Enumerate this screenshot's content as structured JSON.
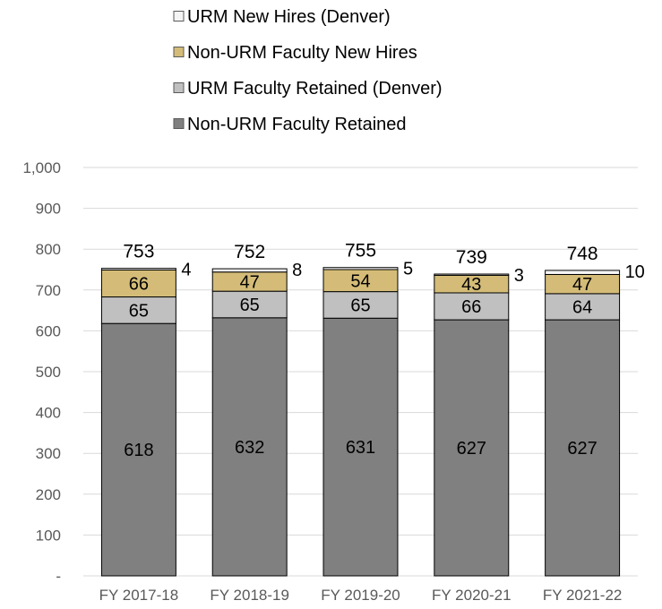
{
  "chart_data": {
    "type": "bar",
    "stacked": true,
    "categories": [
      "FY 2017-18",
      "FY 2018-19",
      "FY 2019-20",
      "FY 2020-21",
      "FY 2021-22"
    ],
    "series": [
      {
        "name": "Non-URM Faculty Retained",
        "color": "#808080",
        "values": [
          618,
          632,
          631,
          627,
          627
        ],
        "labels": [
          "618",
          "632",
          "631",
          "627",
          "627"
        ]
      },
      {
        "name": "URM Faculty Retained (Denver)",
        "color": "#c0c0c0",
        "values": [
          65,
          65,
          65,
          66,
          64
        ],
        "labels": [
          "65",
          "65",
          "65",
          "66",
          "64"
        ]
      },
      {
        "name": "Non-URM Faculty New Hires",
        "color": "#d4bc78",
        "values": [
          66,
          47,
          54,
          43,
          47
        ],
        "labels": [
          "66",
          "47",
          "54",
          "43",
          "47"
        ]
      },
      {
        "name": "URM New Hires (Denver)",
        "color": "#f5f5f5",
        "values": [
          4,
          8,
          5,
          3,
          10
        ],
        "labels": [
          "4",
          "8",
          "5",
          "3",
          "10"
        ]
      }
    ],
    "totals": [
      753,
      752,
      755,
      739,
      748
    ],
    "total_labels": [
      "753",
      "752",
      "755",
      "739",
      "748"
    ],
    "yticks": [
      0,
      100,
      200,
      300,
      400,
      500,
      600,
      700,
      800,
      900,
      1000
    ],
    "ytick_labels": [
      "-",
      "100",
      "200",
      "300",
      "400",
      "500",
      "600",
      "700",
      "800",
      "900",
      "1,000"
    ],
    "ylim": [
      0,
      1000
    ],
    "legend_position": "top",
    "legend_order": [
      3,
      2,
      1,
      0
    ],
    "grid": true,
    "colors": {
      "gridline": "#d9d9d9",
      "bar_edge": "#000000",
      "tick_text": "#595959"
    }
  }
}
